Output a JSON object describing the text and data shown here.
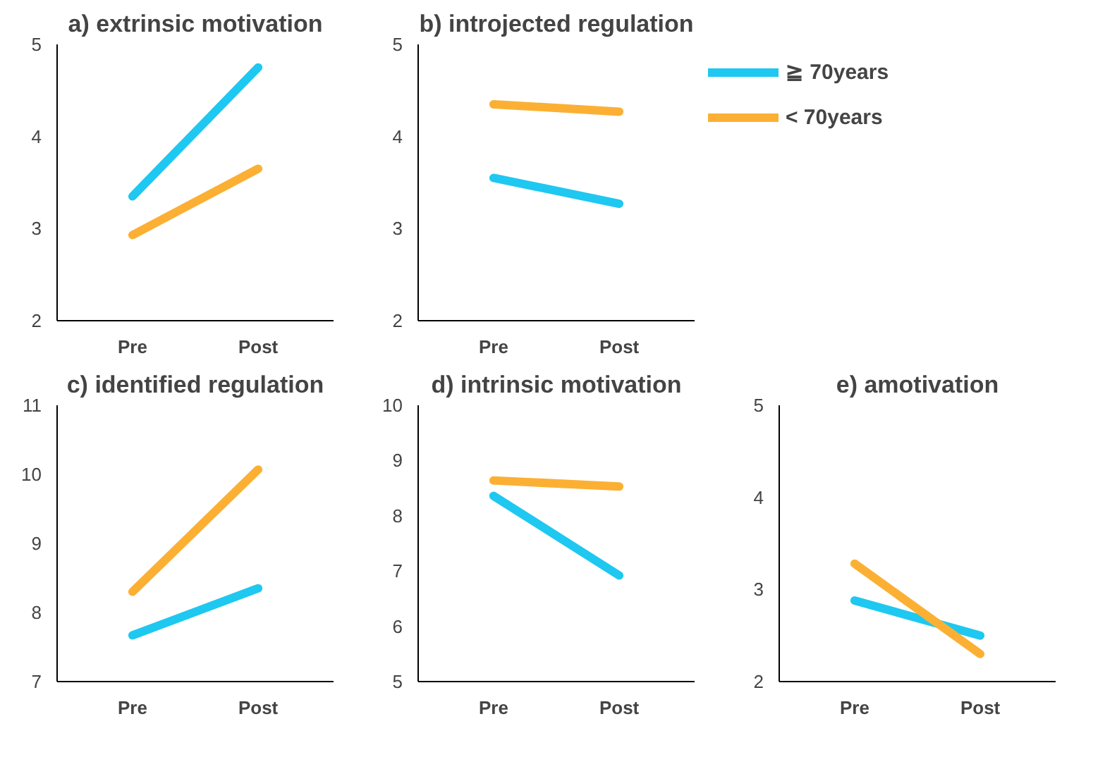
{
  "chart_data": [
    {
      "type": "line",
      "title": "a) extrinsic motivation",
      "categories": [
        "Pre",
        "Post"
      ],
      "ylim": [
        2,
        5
      ],
      "yticks": [
        2,
        3,
        4,
        5
      ],
      "grid": false,
      "legend": false,
      "series": [
        {
          "color": "#1ec8f0",
          "values": [
            3.35,
            4.75
          ]
        },
        {
          "color": "#fbb034",
          "values": [
            2.93,
            3.65
          ]
        }
      ]
    },
    {
      "type": "line",
      "title": "b) introjected regulation",
      "categories": [
        "Pre",
        "Post"
      ],
      "ylim": [
        2,
        5
      ],
      "yticks": [
        2,
        3,
        4,
        5
      ],
      "grid": false,
      "legend": "right",
      "series": [
        {
          "name": "≧ 70years",
          "color": "#1ec8f0",
          "values": [
            3.55,
            3.27
          ]
        },
        {
          "name": "< 70years",
          "color": "#fbb034",
          "values": [
            4.35,
            4.27
          ]
        }
      ]
    },
    {
      "type": "line",
      "title": "c) identified regulation",
      "categories": [
        "Pre",
        "Post"
      ],
      "ylim": [
        7,
        11
      ],
      "yticks": [
        7,
        8,
        9,
        10,
        11
      ],
      "grid": false,
      "legend": false,
      "series": [
        {
          "color": "#1ec8f0",
          "values": [
            7.67,
            8.35
          ]
        },
        {
          "color": "#fbb034",
          "values": [
            8.3,
            10.07
          ]
        }
      ]
    },
    {
      "type": "line",
      "title": "d) intrinsic motivation",
      "categories": [
        "Pre",
        "Post"
      ],
      "ylim": [
        5,
        10
      ],
      "yticks": [
        5,
        6,
        7,
        8,
        9,
        10
      ],
      "grid": false,
      "legend": false,
      "series": [
        {
          "color": "#1ec8f0",
          "values": [
            8.36,
            6.92
          ]
        },
        {
          "color": "#fbb034",
          "values": [
            8.64,
            8.53
          ]
        }
      ]
    },
    {
      "type": "line",
      "title": "e) amotivation",
      "categories": [
        "Pre",
        "Post"
      ],
      "ylim": [
        2,
        5
      ],
      "yticks": [
        2,
        3,
        4,
        5
      ],
      "grid": false,
      "legend": false,
      "series": [
        {
          "color": "#1ec8f0",
          "values": [
            2.88,
            2.5
          ]
        },
        {
          "color": "#fbb034",
          "values": [
            3.28,
            2.3
          ]
        }
      ]
    }
  ]
}
